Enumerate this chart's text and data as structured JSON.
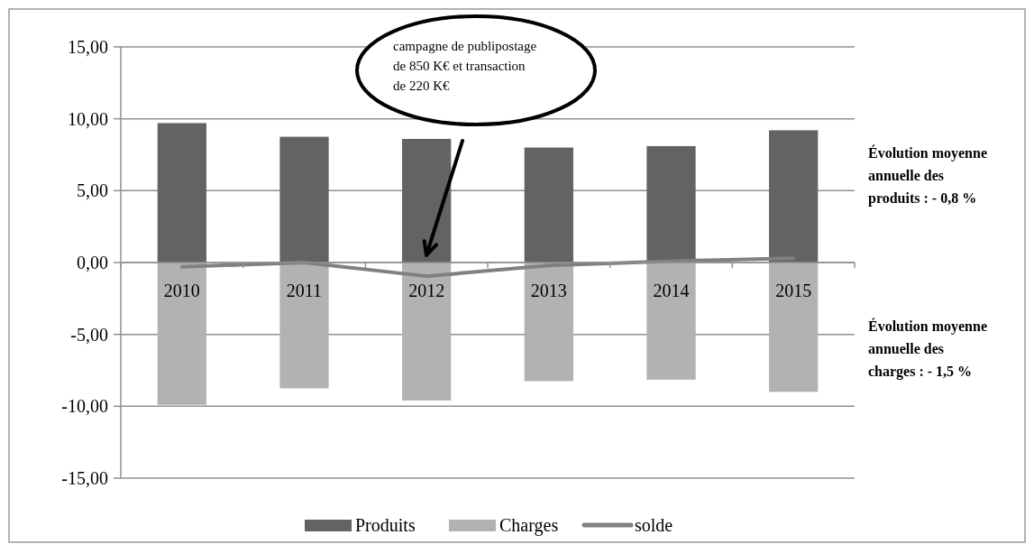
{
  "chart_data": {
    "type": "bar",
    "stacked": true,
    "categories": [
      "2010",
      "2011",
      "2012",
      "2013",
      "2014",
      "2015"
    ],
    "series": [
      {
        "name": "Produits",
        "color": "#636363",
        "values": [
          9.7,
          8.75,
          8.6,
          8.0,
          8.1,
          9.2
        ]
      },
      {
        "name": "Charges",
        "color": "#b2b2b2",
        "values": [
          -9.9,
          -8.75,
          -9.6,
          -8.25,
          -8.15,
          -9.0
        ]
      },
      {
        "name": "solde",
        "type": "line",
        "color": "#808080",
        "values": [
          -0.3,
          0.0,
          -0.95,
          -0.2,
          0.1,
          0.3
        ]
      }
    ],
    "ylim": [
      -15,
      15
    ],
    "yticks": [
      {
        "value": -15,
        "label": "-15,00"
      },
      {
        "value": -10,
        "label": "-10,00"
      },
      {
        "value": -5,
        "label": "-5,00"
      },
      {
        "value": 0,
        "label": "0,00"
      },
      {
        "value": 5,
        "label": "5,00"
      },
      {
        "value": 10,
        "label": "10,00"
      },
      {
        "value": 15,
        "label": "15,00"
      }
    ],
    "grid": "y",
    "legend": "bottom",
    "marker": "none",
    "annotations": [
      "campagne de publipostage de 850 K€ et transaction  de 220 K€",
      "Évolution moyenne annuelle des produits : - 0,8 %",
      "Évolution moyenne annuelle des charges : - 1,5 %"
    ]
  }
}
